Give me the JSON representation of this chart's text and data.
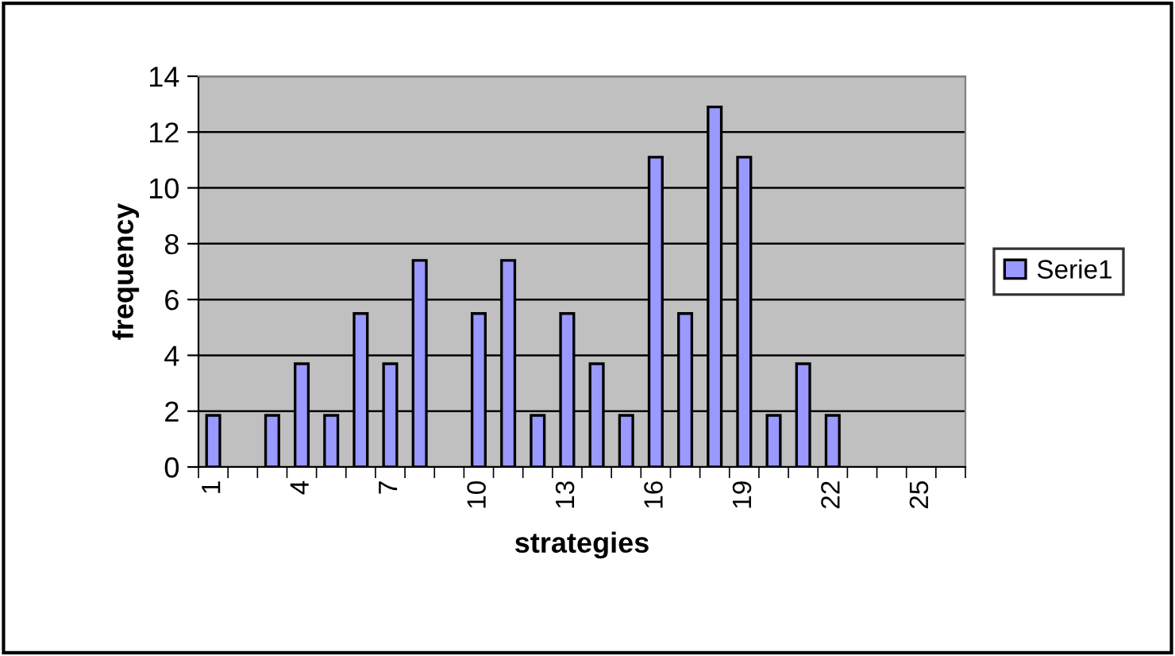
{
  "chart_data": {
    "type": "bar",
    "xlabel": "strategies",
    "ylabel": "frequency",
    "categories": [
      "1",
      null,
      null,
      "4",
      null,
      null,
      "7",
      null,
      null,
      "10",
      null,
      null,
      "13",
      null,
      null,
      "16",
      null,
      null,
      "19",
      null,
      null,
      "22",
      null,
      null,
      "25",
      null
    ],
    "series": [
      {
        "name": "Serie1",
        "color": "#9999ff",
        "values": [
          1.85,
          0,
          1.85,
          3.7,
          1.85,
          5.5,
          3.7,
          7.4,
          0,
          5.5,
          7.4,
          1.85,
          5.5,
          3.7,
          1.85,
          11.1,
          5.5,
          12.9,
          11.1,
          1.85,
          3.7,
          1.85,
          0,
          0,
          0,
          0
        ]
      }
    ],
    "ylim": [
      0,
      14
    ],
    "yticks": [
      0,
      2,
      4,
      6,
      8,
      10,
      12,
      14
    ],
    "grid": "y",
    "legend": "right"
  }
}
